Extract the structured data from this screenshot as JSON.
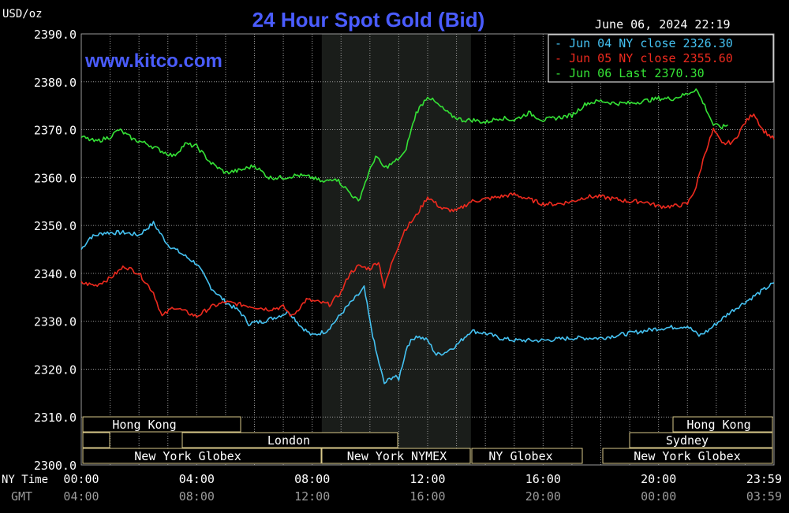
{
  "header": {
    "unit": "USD/oz",
    "title": "24 Hour Spot Gold (Bid)",
    "timestamp": "June 06, 2024 22:19",
    "website": "www.kitco.com"
  },
  "labels": {
    "ny_time": "NY Time",
    "gmt": "GMT"
  },
  "sessions": {
    "hong_kong": "Hong Kong",
    "london": "London",
    "ny_globex": "New York Globex",
    "ny_nymex": "New York NYMEX",
    "ny_globex_short": "NY Globex",
    "hong_kong_2": "Hong Kong",
    "sydney": "Sydney",
    "ny_globex_2": "New York Globex"
  },
  "colors": {
    "background": "#000000",
    "grid": "#9a9a9a",
    "nymex_shade": "#1a1d1a",
    "blue": "#45c2f2",
    "red": "#ee2a1e",
    "green": "#35e236",
    "title": "#4a5cff",
    "session_border": "#d9c98a"
  },
  "chart_data": {
    "type": "line",
    "title": "24 Hour Spot Gold (Bid)",
    "ylabel": "USD/oz",
    "ylim": [
      2300,
      2390
    ],
    "yticks": [
      "2390.0",
      "2380.0",
      "2370.0",
      "2360.0",
      "2350.0",
      "2340.0",
      "2330.0",
      "2320.0",
      "2310.0",
      "2300.0"
    ],
    "xlim": [
      0,
      24
    ],
    "xticks_ny": [
      "00:00",
      "04:00",
      "08:00",
      "12:00",
      "16:00",
      "20:00",
      "23:59"
    ],
    "xticks_gmt": [
      "04:00",
      "08:00",
      "12:00",
      "16:00",
      "20:00",
      "00:00",
      "03:59"
    ],
    "grid": true,
    "legend_position": "top-right",
    "series": [
      {
        "name": "Jun 04 NY close 2326.30",
        "color": "#45c2f2",
        "points": [
          [
            0,
            2345
          ],
          [
            0.3,
            2347.5
          ],
          [
            0.8,
            2348.5
          ],
          [
            1.5,
            2348.5
          ],
          [
            2.0,
            2348
          ],
          [
            2.5,
            2350.5
          ],
          [
            3.0,
            2346
          ],
          [
            3.5,
            2344
          ],
          [
            4.0,
            2342
          ],
          [
            4.5,
            2337
          ],
          [
            5.0,
            2334
          ],
          [
            5.5,
            2332
          ],
          [
            5.8,
            2329.5
          ],
          [
            6.3,
            2330
          ],
          [
            6.8,
            2331
          ],
          [
            7.2,
            2332
          ],
          [
            7.6,
            2329
          ],
          [
            8.0,
            2327
          ],
          [
            8.5,
            2328
          ],
          [
            8.8,
            2330
          ],
          [
            9.2,
            2333
          ],
          [
            9.6,
            2335.5
          ],
          [
            9.8,
            2337
          ],
          [
            10.0,
            2330
          ],
          [
            10.2,
            2324
          ],
          [
            10.5,
            2317
          ],
          [
            10.8,
            2318.5
          ],
          [
            11.0,
            2318
          ],
          [
            11.3,
            2325
          ],
          [
            11.6,
            2327
          ],
          [
            12.0,
            2326
          ],
          [
            12.3,
            2323
          ],
          [
            12.6,
            2323.5
          ],
          [
            13.0,
            2325
          ],
          [
            13.5,
            2328
          ],
          [
            14.0,
            2327.5
          ],
          [
            14.5,
            2326.5
          ],
          [
            15.0,
            2326
          ],
          [
            16.0,
            2326
          ],
          [
            17.0,
            2326.5
          ],
          [
            18.0,
            2326.5
          ],
          [
            19.0,
            2327.5
          ],
          [
            20.0,
            2328.5
          ],
          [
            21.0,
            2329
          ],
          [
            21.4,
            2327
          ],
          [
            21.7,
            2328
          ],
          [
            22.0,
            2329.5
          ],
          [
            22.5,
            2332
          ],
          [
            23.0,
            2334
          ],
          [
            23.5,
            2336
          ],
          [
            24.0,
            2338
          ]
        ]
      },
      {
        "name": "Jun 05 NY close 2355.60",
        "color": "#ee2a1e",
        "points": [
          [
            0,
            2338
          ],
          [
            0.5,
            2337.5
          ],
          [
            1.0,
            2339
          ],
          [
            1.5,
            2341.5
          ],
          [
            2.0,
            2340
          ],
          [
            2.5,
            2336
          ],
          [
            2.8,
            2331
          ],
          [
            3.2,
            2333
          ],
          [
            3.6,
            2332
          ],
          [
            4.0,
            2331
          ],
          [
            4.5,
            2333
          ],
          [
            5.0,
            2334
          ],
          [
            5.5,
            2333.5
          ],
          [
            6.0,
            2333
          ],
          [
            6.5,
            2332.5
          ],
          [
            7.0,
            2333
          ],
          [
            7.3,
            2331
          ],
          [
            7.8,
            2334.5
          ],
          [
            8.2,
            2334
          ],
          [
            8.6,
            2333.5
          ],
          [
            9.0,
            2336
          ],
          [
            9.3,
            2340
          ],
          [
            9.6,
            2341.5
          ],
          [
            10.0,
            2341
          ],
          [
            10.3,
            2342.5
          ],
          [
            10.5,
            2337
          ],
          [
            10.8,
            2343
          ],
          [
            11.2,
            2349
          ],
          [
            11.6,
            2352
          ],
          [
            12.0,
            2356
          ],
          [
            12.5,
            2353.5
          ],
          [
            13.0,
            2353
          ],
          [
            13.5,
            2355
          ],
          [
            14.0,
            2355.5
          ],
          [
            14.5,
            2356
          ],
          [
            15.0,
            2356.5
          ],
          [
            15.5,
            2355.5
          ],
          [
            16.0,
            2354.5
          ],
          [
            16.5,
            2354.5
          ],
          [
            17.0,
            2355
          ],
          [
            17.5,
            2356
          ],
          [
            18.0,
            2356
          ],
          [
            18.5,
            2355.5
          ],
          [
            19.0,
            2355
          ],
          [
            19.5,
            2355
          ],
          [
            20.0,
            2354
          ],
          [
            20.5,
            2354
          ],
          [
            21.0,
            2354.5
          ],
          [
            21.3,
            2358
          ],
          [
            21.6,
            2365
          ],
          [
            21.9,
            2370
          ],
          [
            22.2,
            2367
          ],
          [
            22.6,
            2367.5
          ],
          [
            23.0,
            2371.5
          ],
          [
            23.3,
            2373.5
          ],
          [
            23.6,
            2370
          ],
          [
            24.0,
            2368
          ]
        ]
      },
      {
        "name": "Jun 06 Last 2370.30",
        "color": "#35e236",
        "points": [
          [
            0,
            2368.5
          ],
          [
            0.5,
            2367.5
          ],
          [
            1.0,
            2368.5
          ],
          [
            1.3,
            2370
          ],
          [
            1.8,
            2368
          ],
          [
            2.3,
            2367
          ],
          [
            2.8,
            2365.5
          ],
          [
            3.2,
            2364.5
          ],
          [
            3.6,
            2367
          ],
          [
            4.0,
            2366.5
          ],
          [
            4.5,
            2363
          ],
          [
            5.0,
            2361
          ],
          [
            5.5,
            2361.5
          ],
          [
            6.0,
            2362.5
          ],
          [
            6.5,
            2360
          ],
          [
            7.0,
            2360
          ],
          [
            7.5,
            2360.5
          ],
          [
            8.0,
            2360
          ],
          [
            8.4,
            2359
          ],
          [
            8.8,
            2360
          ],
          [
            9.2,
            2357.5
          ],
          [
            9.6,
            2355
          ],
          [
            9.9,
            2360
          ],
          [
            10.2,
            2364.5
          ],
          [
            10.5,
            2362
          ],
          [
            10.8,
            2363
          ],
          [
            11.2,
            2365
          ],
          [
            11.6,
            2373.5
          ],
          [
            12.0,
            2377
          ],
          [
            12.4,
            2375
          ],
          [
            12.8,
            2373
          ],
          [
            13.2,
            2372
          ],
          [
            13.6,
            2372
          ],
          [
            14.0,
            2371.5
          ],
          [
            14.5,
            2372.5
          ],
          [
            15.0,
            2372
          ],
          [
            15.5,
            2373.5
          ],
          [
            16.0,
            2372
          ],
          [
            16.5,
            2372.5
          ],
          [
            17.0,
            2373
          ],
          [
            17.5,
            2375.5
          ],
          [
            18.0,
            2376
          ],
          [
            18.5,
            2375.5
          ],
          [
            19.0,
            2375.5
          ],
          [
            19.5,
            2376
          ],
          [
            20.0,
            2376.5
          ],
          [
            20.5,
            2376.5
          ],
          [
            21.0,
            2377.5
          ],
          [
            21.3,
            2378.5
          ],
          [
            21.6,
            2375
          ],
          [
            21.9,
            2371
          ],
          [
            22.2,
            2370.5
          ],
          [
            22.4,
            2371
          ]
        ]
      }
    ]
  }
}
